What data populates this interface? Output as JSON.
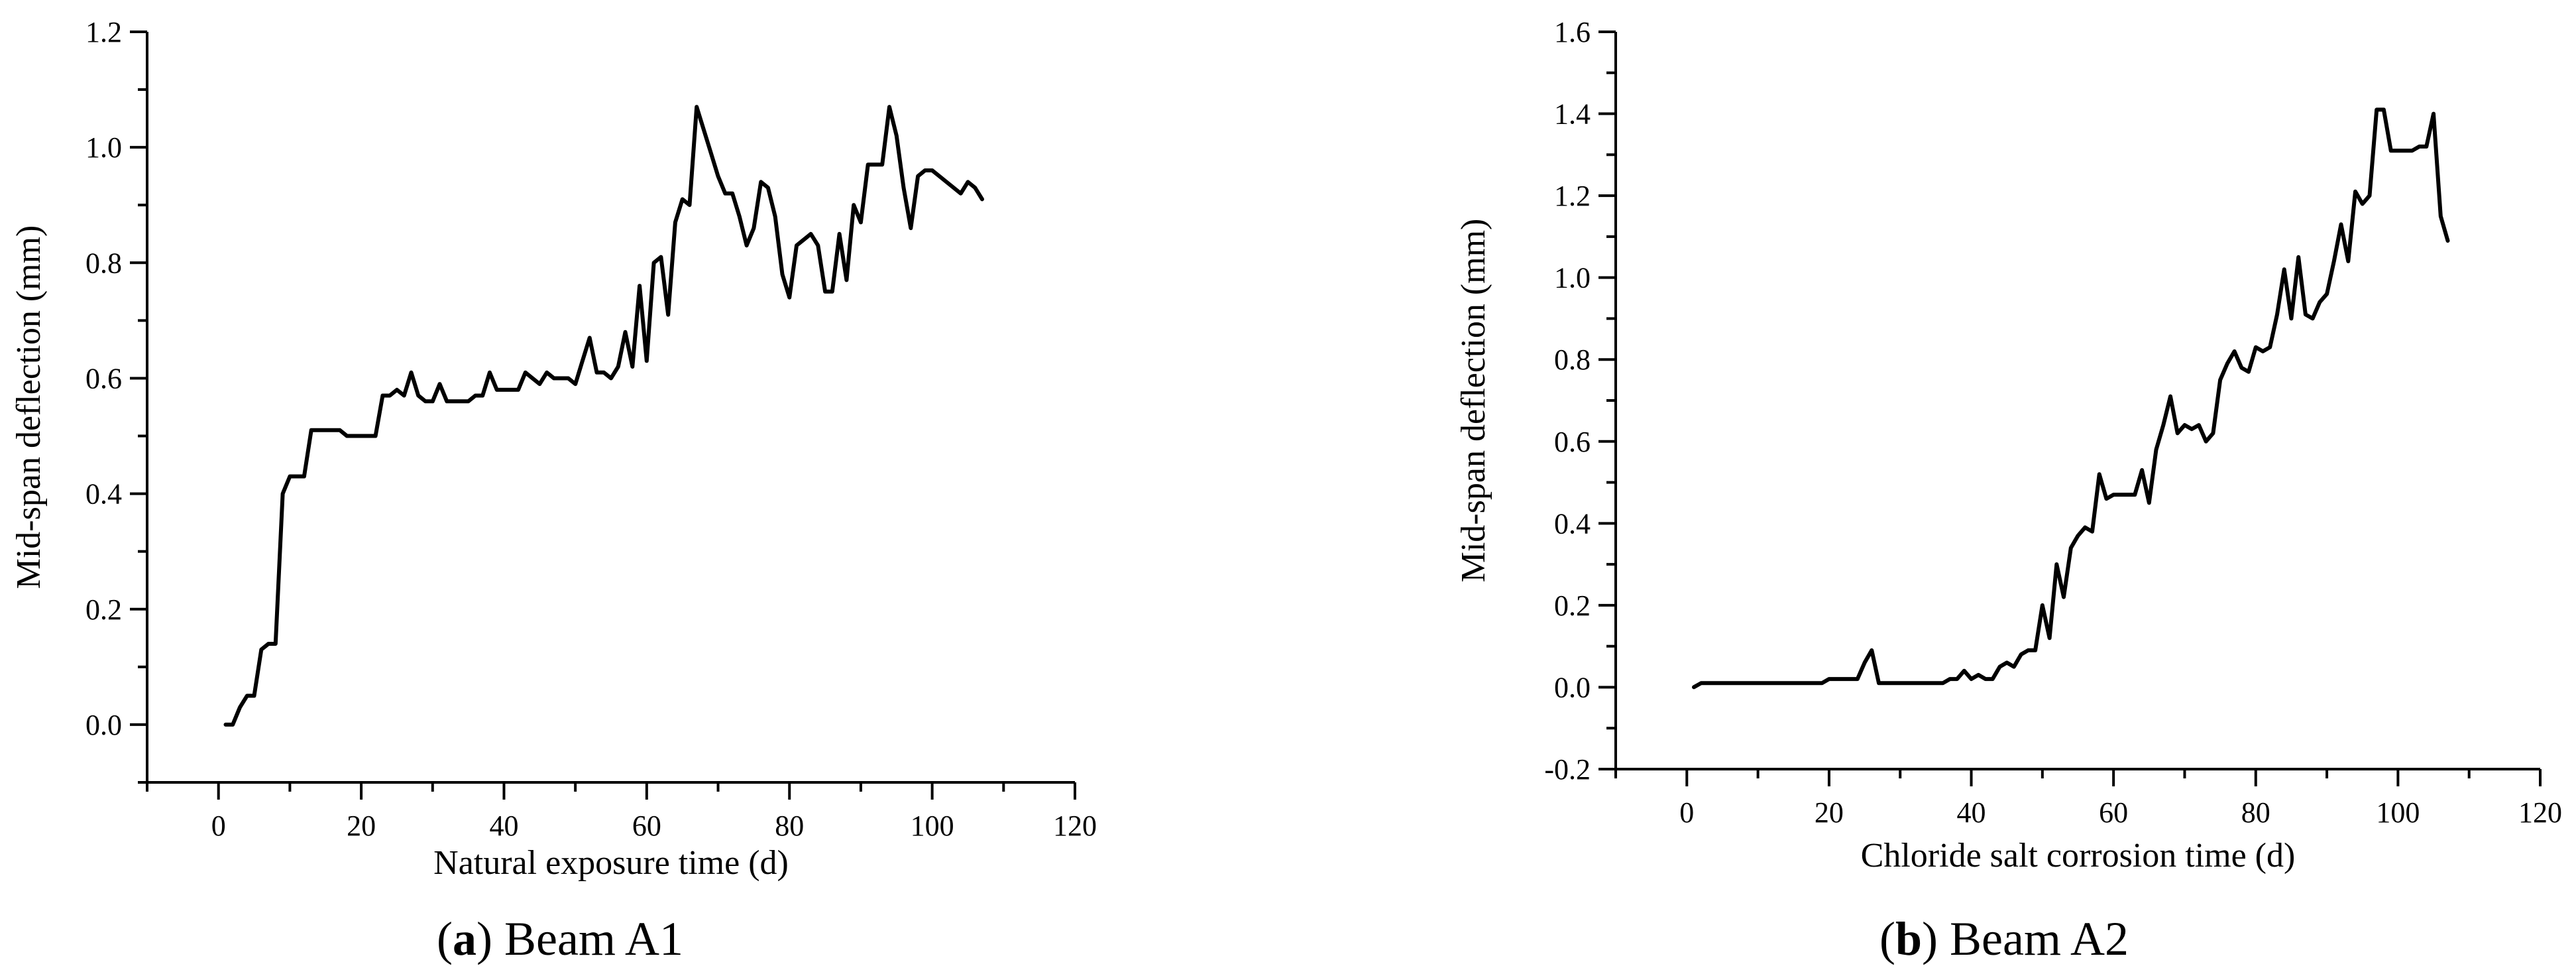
{
  "chart_data": [
    {
      "type": "line",
      "xlabel": "Natural exposure time (d)",
      "ylabel": "Mid-span deflection (mm)",
      "caption_letter": "a",
      "caption_text": "Beam A1",
      "xlim": [
        -10,
        120
      ],
      "ylim": [
        -0.1,
        1.2
      ],
      "xticks": [
        0,
        20,
        40,
        60,
        80,
        100,
        120
      ],
      "yticks": [
        0.0,
        0.2,
        0.4,
        0.6,
        0.8,
        1.0,
        1.2
      ],
      "ytick_labels": [
        "0.0",
        "0.2",
        "0.4",
        "0.6",
        "0.8",
        "1.0",
        "1.2"
      ],
      "grid": false,
      "x": [
        1,
        2,
        3,
        4,
        5,
        6,
        7,
        8,
        9,
        10,
        11,
        12,
        13,
        14,
        15,
        16,
        17,
        18,
        19,
        20,
        21,
        22,
        23,
        24,
        25,
        26,
        27,
        28,
        29,
        30,
        31,
        32,
        33,
        34,
        35,
        36,
        37,
        38,
        39,
        40,
        41,
        42,
        43,
        44,
        45,
        46,
        47,
        48,
        49,
        50,
        51,
        52,
        53,
        54,
        55,
        56,
        57,
        58,
        59,
        60,
        61,
        62,
        63,
        64,
        65,
        66,
        67,
        68,
        69,
        70,
        71,
        72,
        73,
        74,
        75,
        76,
        77,
        78,
        79,
        80,
        81,
        82,
        83,
        84,
        85,
        86,
        87,
        88,
        89,
        90,
        91,
        92,
        93,
        94,
        95,
        96,
        97,
        98,
        99,
        100,
        101,
        102,
        103,
        104,
        105,
        106,
        107
      ],
      "y": [
        0.0,
        0.0,
        0.03,
        0.05,
        0.05,
        0.13,
        0.14,
        0.14,
        0.4,
        0.43,
        0.43,
        0.43,
        0.51,
        0.51,
        0.51,
        0.51,
        0.51,
        0.5,
        0.5,
        0.5,
        0.5,
        0.5,
        0.57,
        0.57,
        0.58,
        0.57,
        0.61,
        0.57,
        0.56,
        0.56,
        0.59,
        0.56,
        0.56,
        0.56,
        0.56,
        0.57,
        0.57,
        0.61,
        0.58,
        0.58,
        0.58,
        0.58,
        0.61,
        0.6,
        0.59,
        0.61,
        0.6,
        0.6,
        0.6,
        0.59,
        0.63,
        0.67,
        0.61,
        0.61,
        0.6,
        0.62,
        0.68,
        0.62,
        0.76,
        0.63,
        0.8,
        0.81,
        0.71,
        0.87,
        0.91,
        0.9,
        1.07,
        1.03,
        0.99,
        0.95,
        0.92,
        0.92,
        0.88,
        0.83,
        0.86,
        0.94,
        0.93,
        0.88,
        0.78,
        0.74,
        0.83,
        0.84,
        0.85,
        0.83,
        0.75,
        0.75,
        0.85,
        0.77,
        0.9,
        0.87,
        0.97,
        0.97,
        0.97,
        1.07,
        1.02,
        0.93,
        0.86,
        0.95,
        0.96,
        0.96,
        0.95,
        0.94,
        0.93,
        0.92,
        0.94,
        0.93,
        0.91
      ]
    },
    {
      "type": "line",
      "xlabel": "Chloride salt corrosion time (d)",
      "ylabel": "Mid-span deflection (mm)",
      "caption_letter": "b",
      "caption_text": "Beam A2",
      "xlim": [
        -10,
        120
      ],
      "ylim": [
        -0.2,
        1.6
      ],
      "xticks": [
        0,
        20,
        40,
        60,
        80,
        100,
        120
      ],
      "yticks": [
        -0.2,
        0.0,
        0.2,
        0.4,
        0.6,
        0.8,
        1.0,
        1.2,
        1.4,
        1.6
      ],
      "ytick_labels": [
        "-0.2",
        "0.0",
        "0.2",
        "0.4",
        "0.6",
        "0.8",
        "1.0",
        "1.2",
        "1.4",
        "1.6"
      ],
      "grid": false,
      "x": [
        1,
        2,
        3,
        4,
        5,
        6,
        7,
        8,
        9,
        10,
        11,
        12,
        13,
        14,
        15,
        16,
        17,
        18,
        19,
        20,
        21,
        22,
        23,
        24,
        25,
        26,
        27,
        28,
        29,
        30,
        31,
        32,
        33,
        34,
        35,
        36,
        37,
        38,
        39,
        40,
        41,
        42,
        43,
        44,
        45,
        46,
        47,
        48,
        49,
        50,
        51,
        52,
        53,
        54,
        55,
        56,
        57,
        58,
        59,
        60,
        61,
        62,
        63,
        64,
        65,
        66,
        67,
        68,
        69,
        70,
        71,
        72,
        73,
        74,
        75,
        76,
        77,
        78,
        79,
        80,
        81,
        82,
        83,
        84,
        85,
        86,
        87,
        88,
        89,
        90,
        91,
        92,
        93,
        94,
        95,
        96,
        97,
        98,
        99,
        100,
        101,
        102,
        103,
        104,
        105,
        106,
        107
      ],
      "y": [
        0.0,
        0.01,
        0.01,
        0.01,
        0.01,
        0.01,
        0.01,
        0.01,
        0.01,
        0.01,
        0.01,
        0.01,
        0.01,
        0.01,
        0.01,
        0.01,
        0.01,
        0.01,
        0.01,
        0.02,
        0.02,
        0.02,
        0.02,
        0.02,
        0.06,
        0.09,
        0.01,
        0.01,
        0.01,
        0.01,
        0.01,
        0.01,
        0.01,
        0.01,
        0.01,
        0.01,
        0.02,
        0.02,
        0.04,
        0.02,
        0.03,
        0.02,
        0.02,
        0.05,
        0.06,
        0.05,
        0.08,
        0.09,
        0.09,
        0.2,
        0.12,
        0.3,
        0.22,
        0.34,
        0.37,
        0.39,
        0.38,
        0.52,
        0.46,
        0.47,
        0.47,
        0.47,
        0.47,
        0.53,
        0.45,
        0.58,
        0.64,
        0.71,
        0.62,
        0.64,
        0.63,
        0.64,
        0.6,
        0.62,
        0.75,
        0.79,
        0.82,
        0.78,
        0.77,
        0.83,
        0.82,
        0.83,
        0.91,
        1.02,
        0.9,
        1.05,
        0.91,
        0.9,
        0.94,
        0.96,
        1.04,
        1.13,
        1.04,
        1.21,
        1.18,
        1.2,
        1.41,
        1.41,
        1.31,
        1.31,
        1.31,
        1.31,
        1.32,
        1.32,
        1.4,
        1.15,
        1.09
      ]
    }
  ]
}
